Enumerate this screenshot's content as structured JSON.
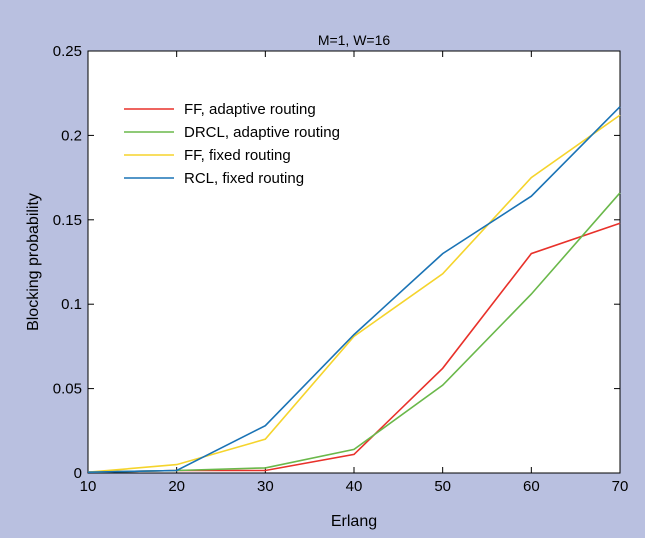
{
  "chart_data": {
    "type": "line",
    "title": "M=1, W=16",
    "xlabel": "Erlang",
    "ylabel": "Blocking probability",
    "xlim": [
      10,
      70
    ],
    "ylim": [
      0,
      0.25
    ],
    "x_ticks": [
      "10",
      "20",
      "30",
      "40",
      "50",
      "60",
      "70"
    ],
    "y_ticks": [
      "0",
      "0.05",
      "0.1",
      "0.15",
      "0.2",
      "0.25"
    ],
    "x": [
      10,
      20,
      30,
      40,
      50,
      60,
      70
    ],
    "legend_position": "top-left",
    "grid": false,
    "series": [
      {
        "name": "FF, adaptive routing",
        "color": "#e8312a",
        "values": [
          0.0005,
          0.0015,
          0.0015,
          0.011,
          0.062,
          0.13,
          0.148
        ]
      },
      {
        "name": "DRCL, adaptive routing",
        "color": "#6ab84a",
        "values": [
          0.0005,
          0.0015,
          0.003,
          0.014,
          0.052,
          0.106,
          0.166
        ]
      },
      {
        "name": "FF, fixed routing",
        "color": "#f5d42c",
        "values": [
          0.0005,
          0.005,
          0.02,
          0.081,
          0.118,
          0.175,
          0.212
        ]
      },
      {
        "name": "RCL, fixed routing",
        "color": "#1a73b5",
        "values": [
          0.0005,
          0.0015,
          0.028,
          0.082,
          0.13,
          0.164,
          0.217
        ]
      }
    ]
  }
}
